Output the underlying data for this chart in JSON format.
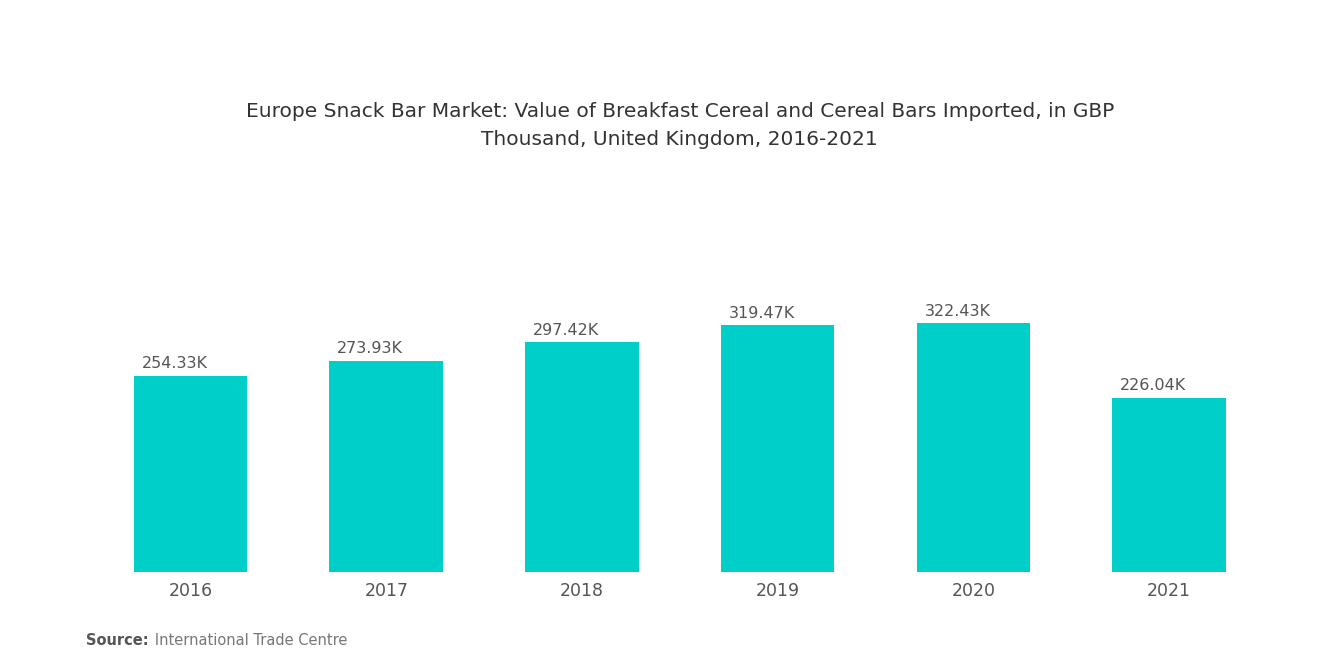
{
  "title": "Europe Snack Bar Market: Value of Breakfast Cereal and Cereal Bars Imported, in GBP\nThousand, United Kingdom, 2016-2021",
  "categories": [
    "2016",
    "2017",
    "2018",
    "2019",
    "2020",
    "2021"
  ],
  "values": [
    254.33,
    273.93,
    297.42,
    319.47,
    322.43,
    226.04
  ],
  "labels": [
    "254.33K",
    "273.93K",
    "297.42K",
    "319.47K",
    "322.43K",
    "226.04K"
  ],
  "bar_color": "#00CEC8",
  "background_color": "#FFFFFF",
  "title_fontsize": 14.5,
  "label_fontsize": 11.5,
  "tick_fontsize": 12.5,
  "source_bold": "Source:",
  "source_rest": "   International Trade Centre",
  "ylim": [
    0,
    500
  ],
  "bar_width": 0.58
}
